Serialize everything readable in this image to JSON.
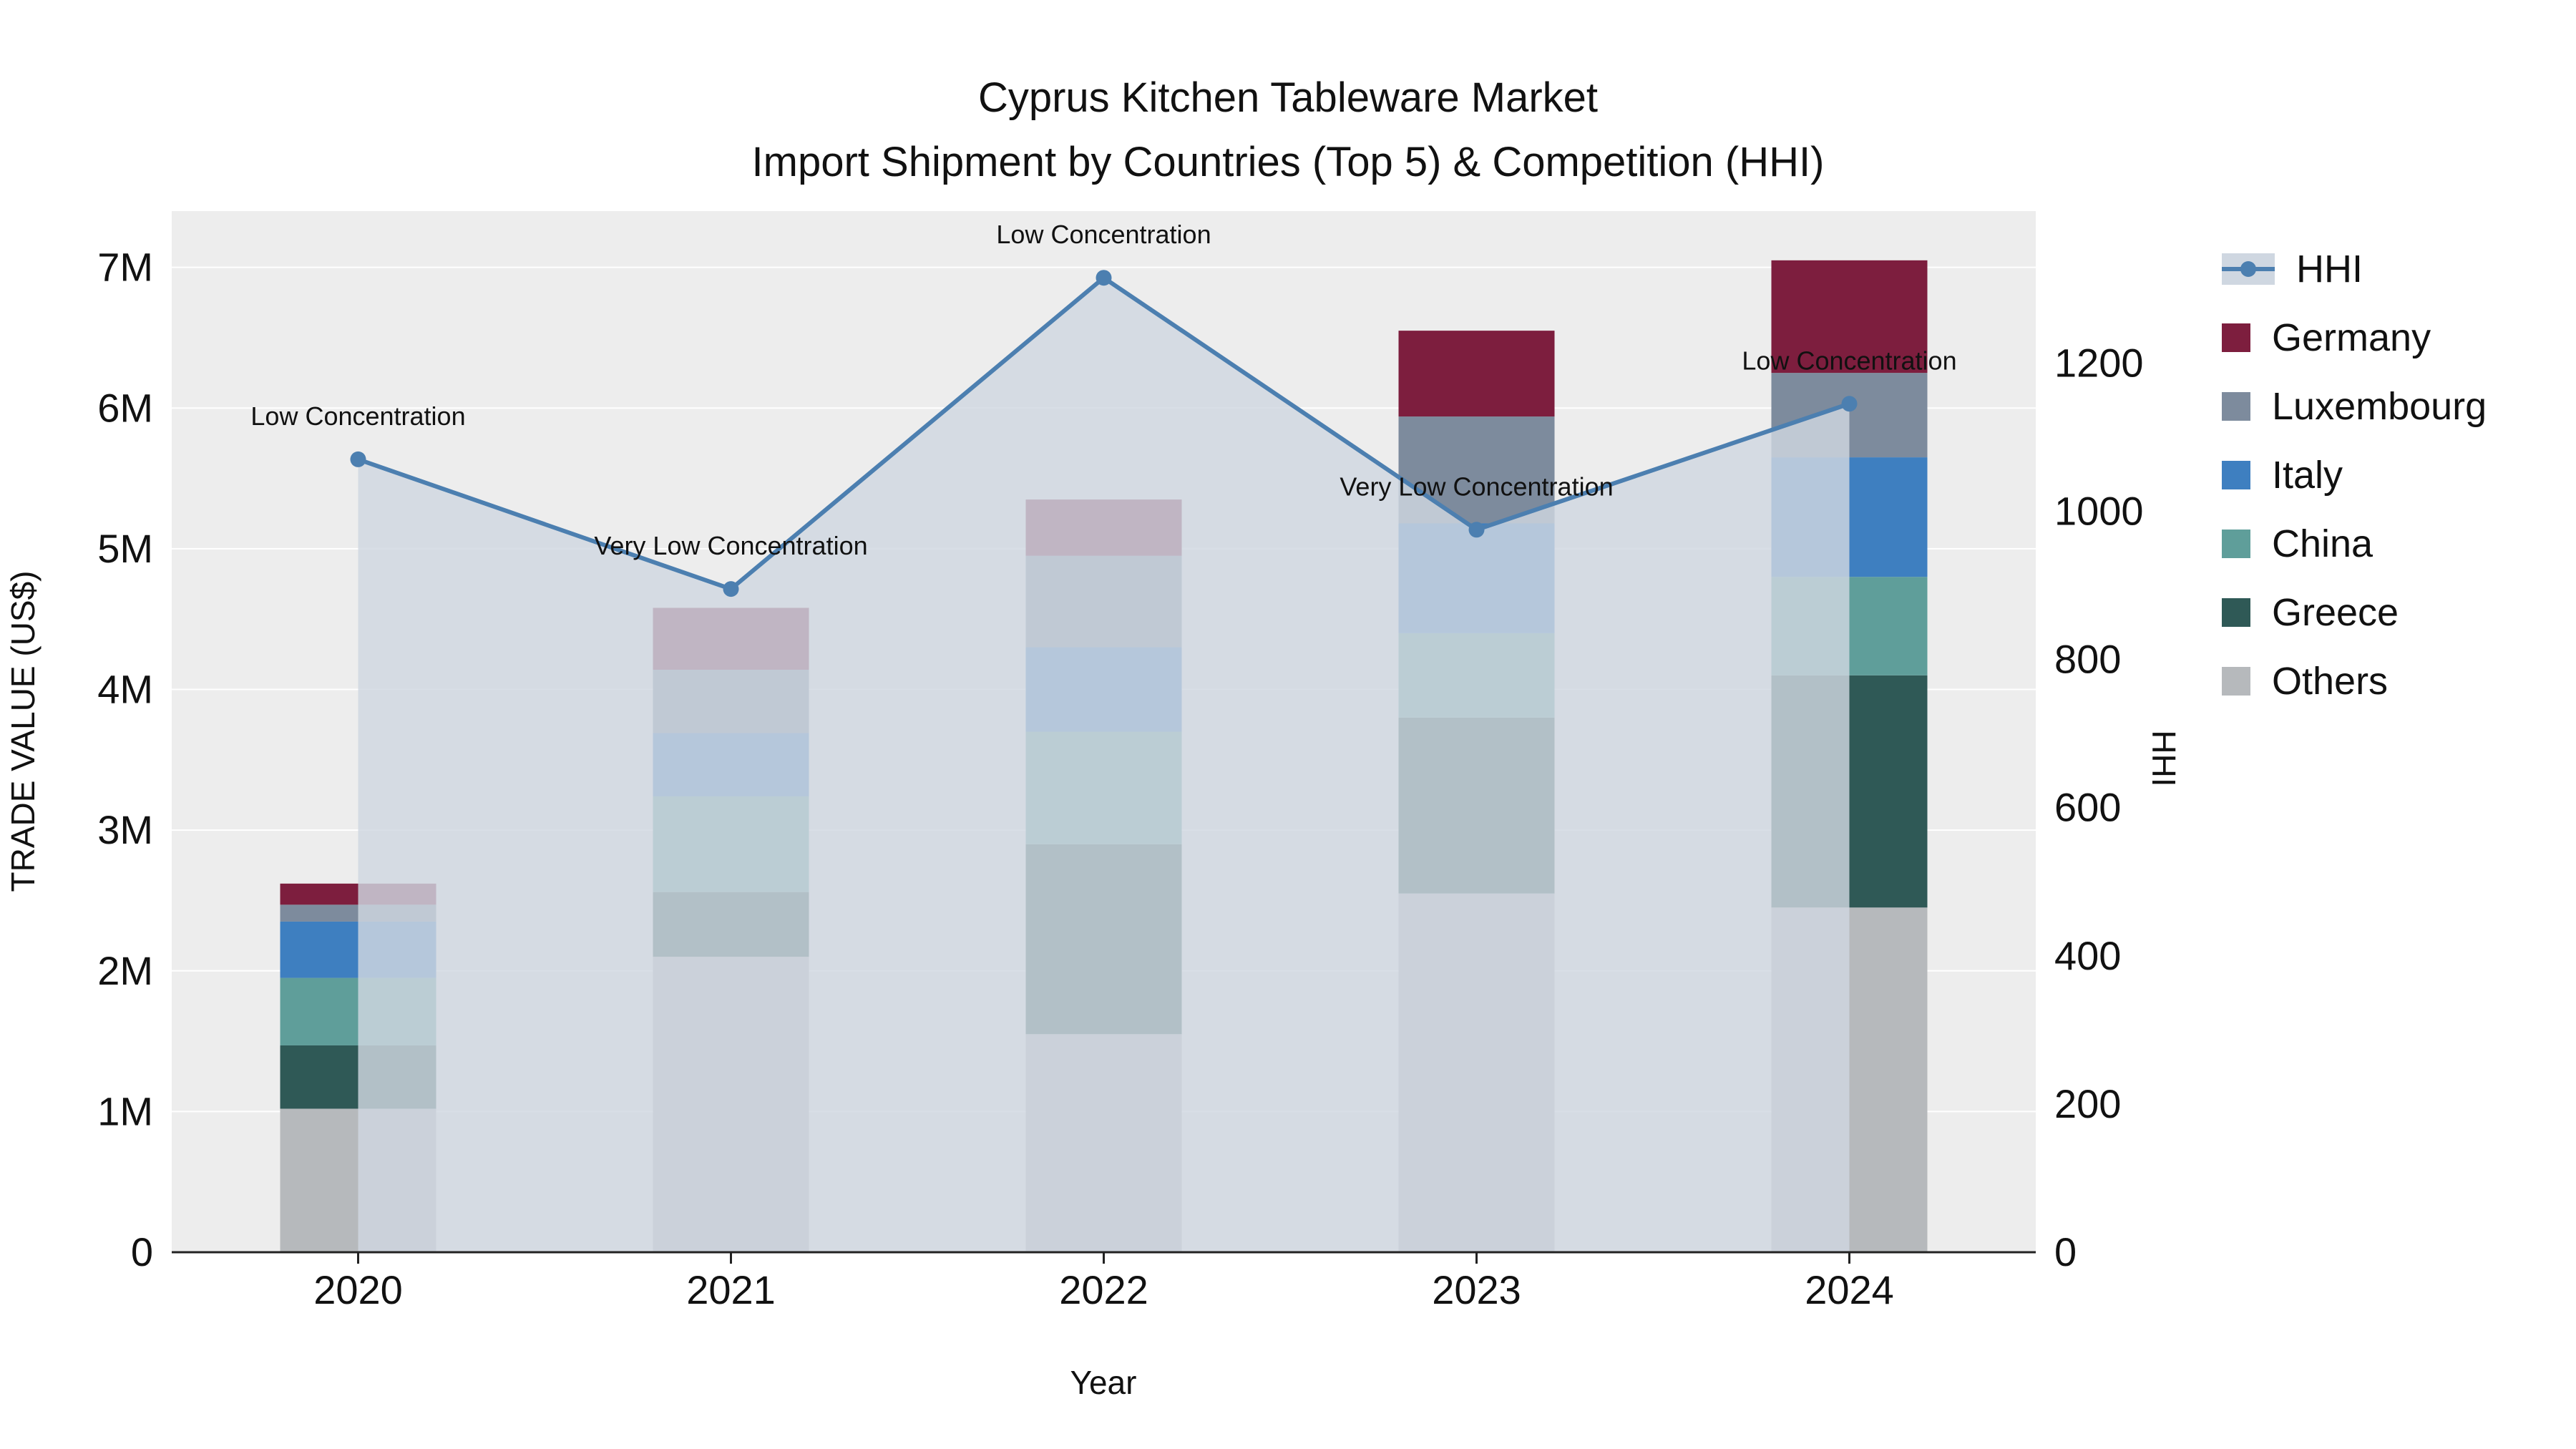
{
  "title": {
    "line1": "Cyprus Kitchen Tableware Market",
    "line2": "Import Shipment by Countries (Top 5) & Competition (HHI)"
  },
  "chart_data": {
    "type": "bar",
    "subtype": "stacked-bars-with-line-overlay",
    "title": "Cyprus Kitchen Tableware Market — Import Shipment by Countries (Top 5) & Competition (HHI)",
    "categories": [
      "2020",
      "2021",
      "2022",
      "2023",
      "2024"
    ],
    "series": [
      {
        "name": "Others",
        "color": "#b6b9bc",
        "values": [
          1020000,
          2100000,
          1550000,
          2550000,
          2450000
        ]
      },
      {
        "name": "Greece",
        "color": "#2f5956",
        "values": [
          450000,
          460000,
          1350000,
          1250000,
          1650000
        ]
      },
      {
        "name": "China",
        "color": "#5f9e9a",
        "values": [
          480000,
          680000,
          800000,
          600000,
          700000
        ]
      },
      {
        "name": "Italy",
        "color": "#3e7fc0",
        "values": [
          400000,
          450000,
          600000,
          780000,
          850000
        ]
      },
      {
        "name": "Luxembourg",
        "color": "#7d8b9d",
        "values": [
          120000,
          450000,
          650000,
          760000,
          600000
        ]
      },
      {
        "name": "Germany",
        "color": "#7d1e3e",
        "values": [
          150000,
          440000,
          400000,
          610000,
          800000
        ]
      }
    ],
    "line": {
      "name": "HHI",
      "color": "#4c7fb0",
      "fill": "#cfd7e1",
      "axis": "right",
      "values": [
        1070,
        895,
        1315,
        975,
        1145
      ],
      "annotations": [
        "Low Concentration",
        "Very Low Concentration",
        "Low Concentration",
        "Very Low Concentration",
        "Low Concentration"
      ]
    },
    "xlabel": "Year",
    "ylabel": "TRADE VALUE (US$)",
    "y2label": "HHI",
    "ylim": [
      0,
      7400000
    ],
    "y2lim": [
      0,
      1405
    ],
    "ytick_values": [
      0,
      1000000,
      2000000,
      3000000,
      4000000,
      5000000,
      6000000,
      7000000
    ],
    "ytick_labels": [
      "0",
      "1M",
      "2M",
      "3M",
      "4M",
      "5M",
      "6M",
      "7M"
    ],
    "y2tick_values": [
      0,
      200,
      400,
      600,
      800,
      1000,
      1200
    ],
    "y2tick_labels": [
      "0",
      "200",
      "400",
      "600",
      "800",
      "1000",
      "1200"
    ],
    "legend_position": "right",
    "grid": true,
    "plot_background": "#ededed"
  }
}
